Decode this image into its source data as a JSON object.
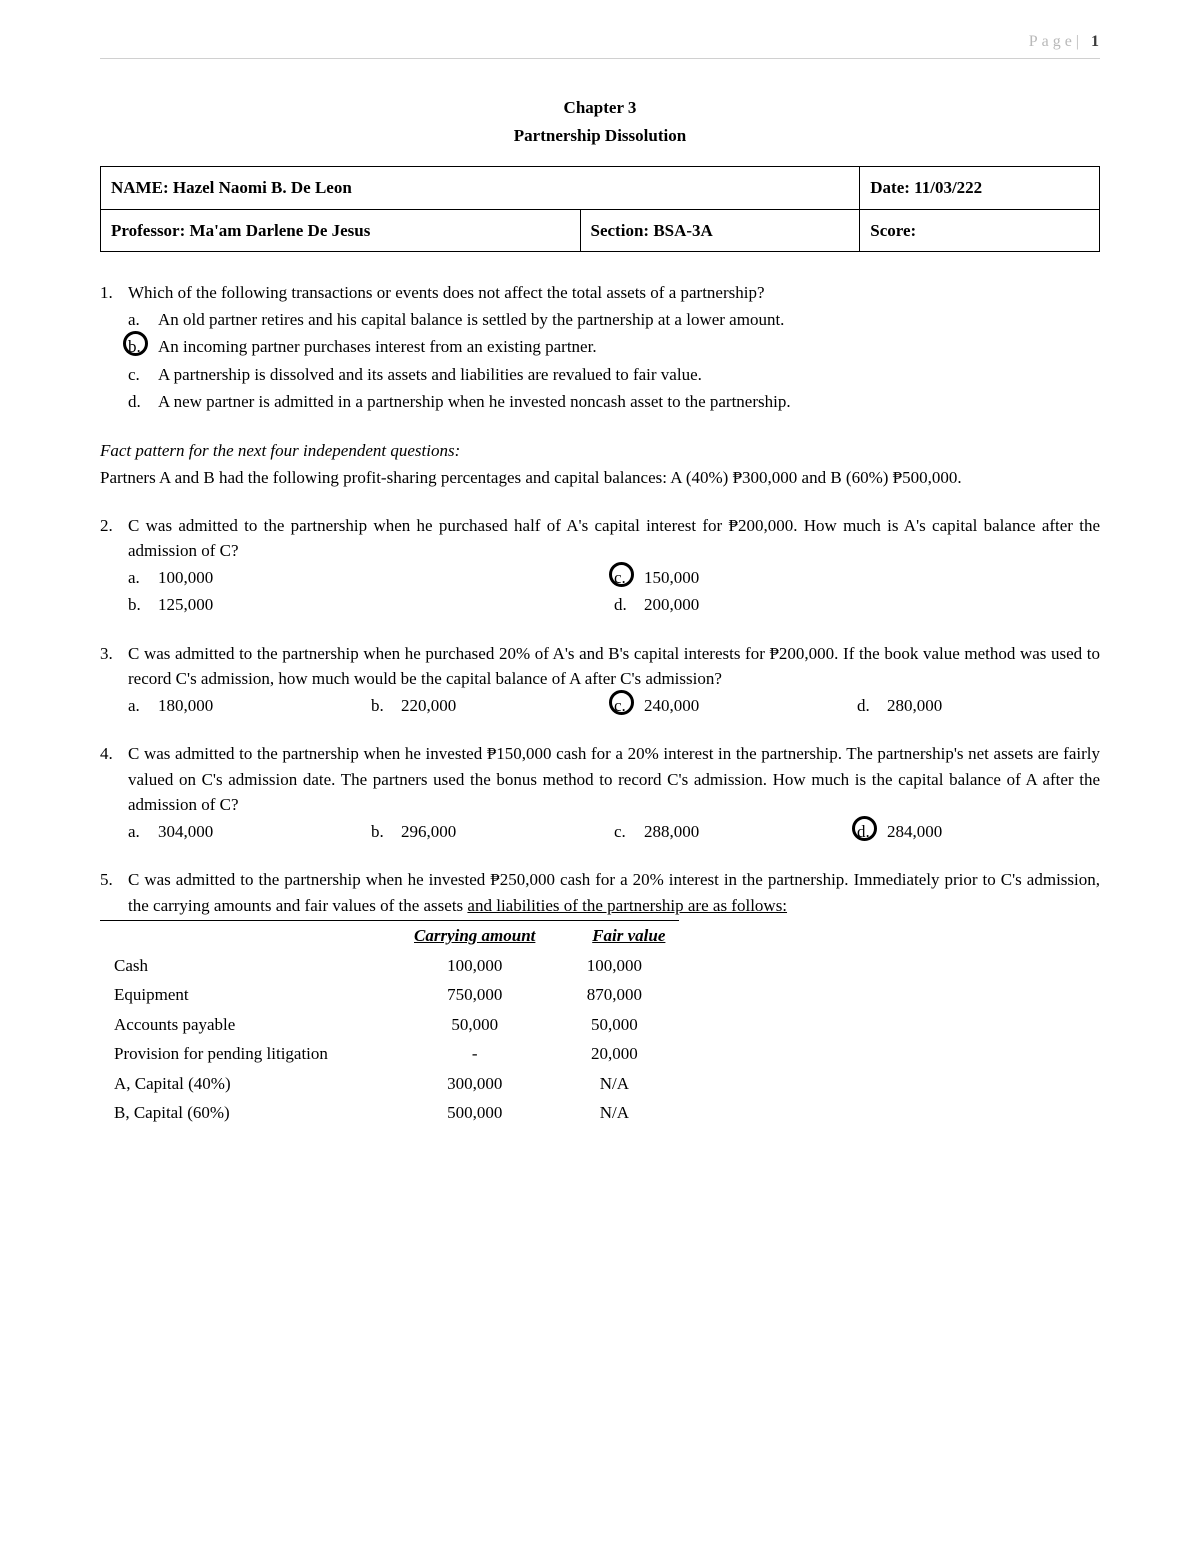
{
  "page_header": {
    "label": "Page|",
    "number": "1"
  },
  "title": "Chapter 3",
  "subtitle": "Partnership Dissolution",
  "info": {
    "name_label": "NAME:",
    "name_value": "Hazel Naomi B. De Leon",
    "date_label": "Date:",
    "date_value": "11/03/222",
    "prof_label": "Professor:",
    "prof_value": "Ma'am Darlene De Jesus",
    "section_label": "Section:",
    "section_value": "BSA-3A",
    "score_label": "Score:"
  },
  "q1": {
    "num": "1.",
    "text": "Which of the following transactions or events does not affect the total assets of a partnership?",
    "opts": [
      {
        "l": "a.",
        "t": "An old partner retires and his capital balance is settled by the partnership at a lower amount."
      },
      {
        "l": "b.",
        "t": "An incoming partner purchases interest from an existing partner."
      },
      {
        "l": "c.",
        "t": "A partnership is dissolved and its assets and liabilities are revalued to fair value."
      },
      {
        "l": "d.",
        "t": "A new partner is admitted in a partnership when he invested noncash asset to the partnership."
      }
    ],
    "circled": 1
  },
  "fact_pattern": {
    "heading": "Fact pattern for the next four independent questions:",
    "body": "Partners A and B had the following profit-sharing percentages and capital balances: A (40%) ₱300,000 and B (60%) ₱500,000."
  },
  "q2": {
    "num": "2.",
    "text": "C was admitted to the partnership when he purchased half of A's capital interest for ₱200,000. How much is A's capital balance after the admission of C?",
    "opts": [
      {
        "l": "a.",
        "t": "100,000"
      },
      {
        "l": "c.",
        "t": "150,000"
      },
      {
        "l": "b.",
        "t": "125,000"
      },
      {
        "l": "d.",
        "t": "200,000"
      }
    ],
    "circled": 1
  },
  "q3": {
    "num": "3.",
    "text": "C was admitted to the partnership when he purchased 20% of A's and B's capital interests for ₱200,000. If the book value method was used to record C's admission, how much would be the capital balance of A after C's admission?",
    "opts": [
      {
        "l": "a.",
        "t": "180,000"
      },
      {
        "l": "b.",
        "t": "220,000"
      },
      {
        "l": "c.",
        "t": "240,000"
      },
      {
        "l": "d.",
        "t": "280,000"
      }
    ],
    "circled": 2
  },
  "q4": {
    "num": "4.",
    "text": "C was admitted to the partnership when he invested ₱150,000 cash for a 20% interest in the partnership. The partnership's net assets are fairly valued on C's admission date. The partners used the bonus method to record C's admission. How much is the capital balance of A after the admission of C?",
    "opts": [
      {
        "l": "a.",
        "t": "304,000"
      },
      {
        "l": "b.",
        "t": "296,000"
      },
      {
        "l": "c.",
        "t": "288,000"
      },
      {
        "l": "d.",
        "t": "284,000"
      }
    ],
    "circled": 3
  },
  "q5": {
    "num": "5.",
    "text_a": "C was admitted to the partnership when he invested ₱250,000 cash for a 20% interest in the partnership. Immediately prior to C's admission, the carrying amounts and fair values of the assets ",
    "text_b": "and liabilities of the partnership are as follows:"
  },
  "balance_table": {
    "headers": {
      "carrying": "Carrying amount",
      "fair": "Fair value"
    },
    "rows": [
      {
        "label": "Cash",
        "carrying": "100,000",
        "fair": "100,000"
      },
      {
        "label": "Equipment",
        "carrying": "750,000",
        "fair": "870,000"
      },
      {
        "label": "Accounts payable",
        "carrying": "50,000",
        "fair": "50,000"
      },
      {
        "label": "Provision for pending litigation",
        "carrying": "-",
        "fair": "20,000"
      },
      {
        "label": "A, Capital (40%)",
        "carrying": "300,000",
        "fair": "N/A"
      },
      {
        "label": "B, Capital (60%)",
        "carrying": "500,000",
        "fair": "N/A"
      }
    ]
  }
}
